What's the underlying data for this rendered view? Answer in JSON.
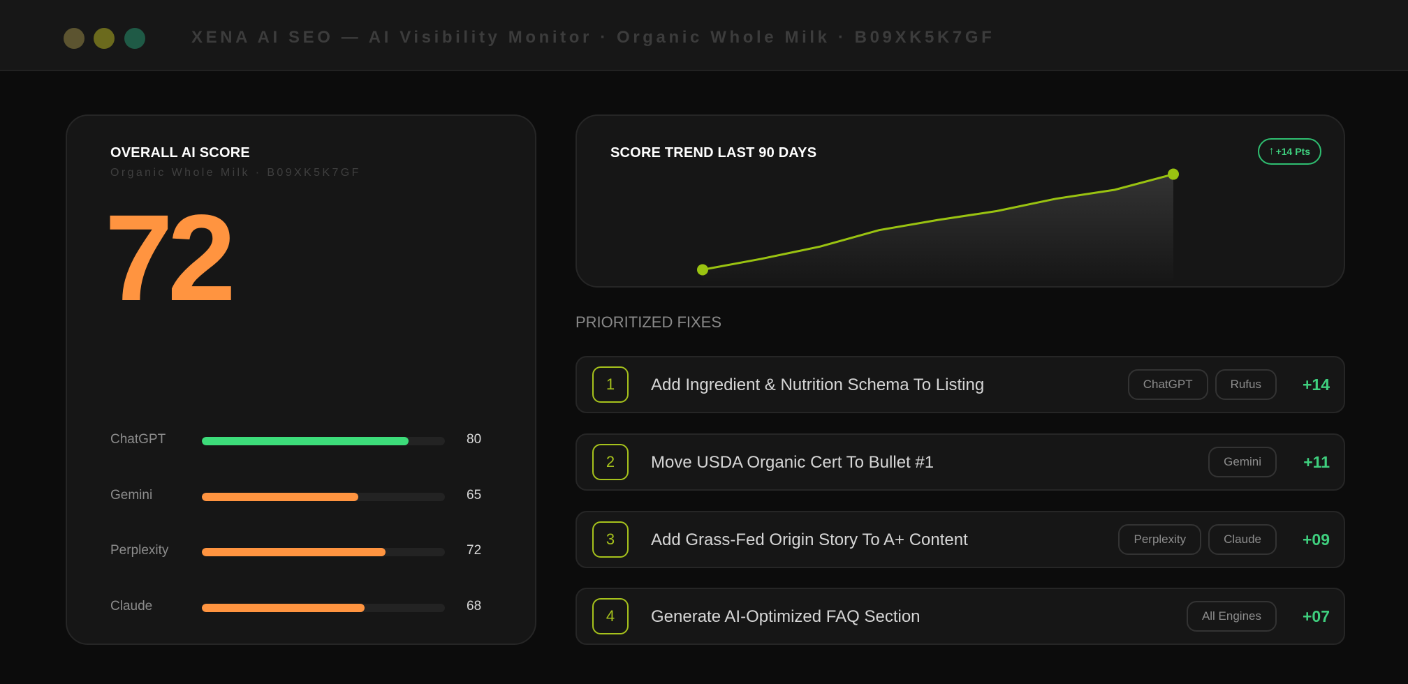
{
  "window": {
    "title": "XENA AI SEO — AI Visibility Monitor · Organic Whole Milk · B09XK5K7GF",
    "controls": [
      {
        "name": "close",
        "color": "#5c5430"
      },
      {
        "name": "minimize",
        "color": "#6b6a1d"
      },
      {
        "name": "maximize",
        "color": "#1f5a46"
      }
    ]
  },
  "score_card": {
    "title": "OVERALL AI SCORE",
    "subtitle": "Organic Whole Milk · B09XK5K7GF",
    "score": "72",
    "engines": [
      {
        "name": "ChatGPT",
        "value": "80",
        "fill": 0.85,
        "color": "#3ddc7a"
      },
      {
        "name": "Gemini",
        "value": "65",
        "fill": 0.645,
        "color": "#ff9440"
      },
      {
        "name": "Perplexity",
        "value": "72",
        "fill": 0.755,
        "color": "#ff9440"
      },
      {
        "name": "Claude",
        "value": "68",
        "fill": 0.67,
        "color": "#ff9440"
      }
    ]
  },
  "trend": {
    "title": "SCORE TREND  LAST 90 DAYS",
    "badge": "+14 Pts",
    "badge_icon": "arrow-up-icon",
    "line_color": "#9ac311",
    "chart_data": {
      "type": "line",
      "x": [
        1,
        2,
        3,
        4,
        5,
        6,
        7,
        8,
        9
      ],
      "values": [
        58,
        59.6,
        61.4,
        63.8,
        65.3,
        66.6,
        68.4,
        69.7,
        72
      ],
      "ylim": [
        56,
        74
      ]
    }
  },
  "fixes": {
    "section_label": "PRIORITIZED FIXES",
    "items": [
      {
        "num": "1",
        "text": "Add Ingredient & Nutrition Schema To Listing",
        "tags": [
          "ChatGPT",
          "Rufus"
        ],
        "gain": "+14"
      },
      {
        "num": "2",
        "text": "Move USDA Organic Cert To Bullet #1",
        "tags": [
          "Gemini"
        ],
        "gain": "+11"
      },
      {
        "num": "3",
        "text": "Add Grass-Fed Origin Story To A+ Content",
        "tags": [
          "Perplexity",
          "Claude"
        ],
        "gain": "+09"
      },
      {
        "num": "4",
        "text": "Generate AI-Optimized FAQ Section",
        "tags": [
          "All Engines"
        ],
        "gain": "+07"
      }
    ]
  }
}
